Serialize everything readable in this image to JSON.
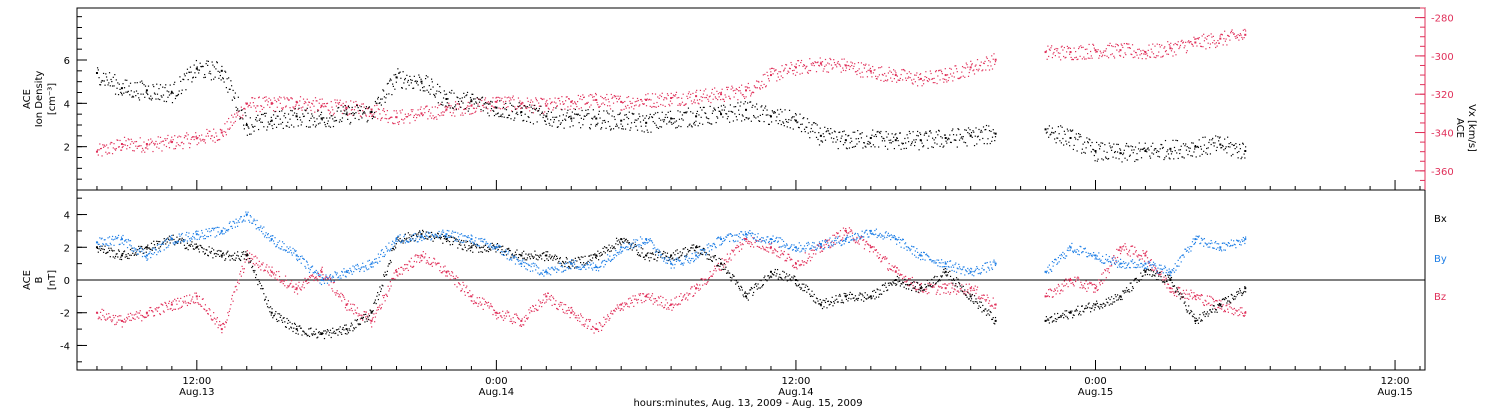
{
  "colors": {
    "black_series": "#000000",
    "pink_series": "#e0305a",
    "blue_series": "#1f7fe6",
    "axis": "#000000",
    "right_axis": "#e0305a"
  },
  "chart_data": [
    {
      "type": "scatter",
      "panel": "top",
      "ylabel_left": [
        "ACE",
        "Ion Density",
        "[cm⁻³]"
      ],
      "ylabel_right": [
        "ACE",
        "Vx [km/s]"
      ],
      "ylim_left": [
        0,
        8.4
      ],
      "ylim_right": [
        -370,
        -275
      ],
      "yticks_left": [
        "2",
        "4",
        "6"
      ],
      "yticks_right": [
        "-280",
        "-300",
        "-320",
        "-340",
        "-360"
      ],
      "x_unit": "hours since Aug.13 00:00 (2009)",
      "series": [
        {
          "color": "black",
          "x": [
            8,
            9,
            10,
            11,
            12,
            13,
            14,
            15,
            16,
            17,
            18,
            19,
            20,
            21,
            22,
            23,
            24,
            25,
            26,
            27,
            28,
            29,
            30,
            31,
            32,
            33,
            34,
            35,
            36,
            37,
            38,
            39,
            40,
            41,
            42,
            43,
            44,
            45,
            46,
            47,
            48,
            49,
            50,
            51,
            52,
            53,
            54
          ],
          "values": [
            5.4,
            4.7,
            4.6,
            4.5,
            5.6,
            5.5,
            3.0,
            3.2,
            3.4,
            3.3,
            3.5,
            3.6,
            5.2,
            5.0,
            4.2,
            4.1,
            3.8,
            3.6,
            3.4,
            3.3,
            3.3,
            3.2,
            3.1,
            3.3,
            3.4,
            3.5,
            3.7,
            3.4,
            3.2,
            2.5,
            2.3,
            2.4,
            2.3,
            2.3,
            2.4,
            2.5,
            2.6,
            null,
            2.8,
            2.4,
            1.8,
            1.7,
            1.8,
            1.9,
            2.0,
            2.1,
            1.8
          ]
        },
        {
          "color": "pink",
          "x": [
            8,
            9,
            10,
            11,
            12,
            13,
            14,
            15,
            16,
            17,
            18,
            19,
            20,
            21,
            22,
            23,
            24,
            25,
            26,
            27,
            28,
            29,
            30,
            31,
            32,
            33,
            34,
            35,
            36,
            37,
            38,
            39,
            40,
            41,
            42,
            43,
            44,
            45,
            46,
            47,
            48,
            49,
            50,
            51,
            52,
            53,
            54
          ],
          "values": [
            -350,
            -346,
            -346,
            -345,
            -343,
            -340,
            -325,
            -325,
            -324,
            -326,
            -327,
            -328,
            -332,
            -330,
            -328,
            -326,
            -324,
            -325,
            -326,
            -324,
            -323,
            -324,
            -323,
            -322,
            -321,
            -320,
            -318,
            -310,
            -306,
            -304,
            -305,
            -308,
            -310,
            -312,
            -310,
            -306,
            -302,
            null,
            -298,
            -298,
            -297,
            -297,
            -298,
            -296,
            -293,
            -291,
            -289
          ]
        }
      ]
    },
    {
      "type": "scatter",
      "panel": "bottom",
      "ylabel_left": [
        "ACE",
        "B",
        "[nT]"
      ],
      "ylim": [
        -5.5,
        5.5
      ],
      "yticks": [
        "4",
        "2",
        "0",
        "-2",
        "-4"
      ],
      "x_unit": "hours since Aug.13 00:00 (2009)",
      "legend": [
        "Bx",
        "By",
        "Bz"
      ],
      "series": [
        {
          "name": "Bx",
          "color": "black",
          "x": [
            8,
            9,
            10,
            11,
            12,
            13,
            14,
            15,
            16,
            17,
            18,
            19,
            20,
            21,
            22,
            23,
            24,
            25,
            26,
            27,
            28,
            29,
            30,
            31,
            32,
            33,
            34,
            35,
            36,
            37,
            38,
            39,
            40,
            41,
            42,
            43,
            44,
            45,
            46,
            47,
            48,
            49,
            50,
            51,
            52,
            53,
            54
          ],
          "values": [
            2.0,
            1.5,
            2.0,
            2.5,
            2.0,
            1.5,
            1.5,
            -2.0,
            -3.0,
            -3.3,
            -3.0,
            -2.0,
            2.5,
            2.8,
            2.5,
            2.0,
            2.0,
            1.5,
            1.5,
            1.0,
            1.5,
            2.5,
            1.5,
            1.5,
            2.0,
            1.0,
            -1.0,
            0.5,
            0.0,
            -1.5,
            -1.0,
            -1.0,
            0.0,
            -0.5,
            0.5,
            -1.0,
            -2.5,
            null,
            -2.5,
            -2.0,
            -1.5,
            -1.0,
            0.5,
            0.0,
            -2.5,
            -1.5,
            -0.5
          ]
        },
        {
          "name": "By",
          "color": "blue",
          "x": [
            8,
            9,
            10,
            11,
            12,
            13,
            14,
            15,
            16,
            17,
            18,
            19,
            20,
            21,
            22,
            23,
            24,
            25,
            26,
            27,
            28,
            29,
            30,
            31,
            32,
            33,
            34,
            35,
            36,
            37,
            38,
            39,
            40,
            41,
            42,
            43,
            44,
            45,
            46,
            47,
            48,
            49,
            50,
            51,
            52,
            53,
            54
          ],
          "values": [
            2.3,
            2.5,
            1.5,
            2.5,
            2.8,
            3.0,
            4.0,
            2.5,
            1.5,
            0.0,
            0.5,
            1.0,
            2.5,
            2.7,
            2.8,
            2.5,
            2.0,
            1.0,
            0.5,
            1.0,
            0.8,
            2.0,
            2.5,
            1.0,
            1.5,
            2.5,
            2.8,
            2.5,
            2.0,
            2.2,
            2.5,
            3.0,
            2.5,
            1.5,
            1.0,
            0.5,
            1.0,
            null,
            0.5,
            2.0,
            1.5,
            1.0,
            1.0,
            0.5,
            2.5,
            2.0,
            2.5
          ]
        },
        {
          "name": "Bz",
          "color": "pink",
          "x": [
            8,
            9,
            10,
            11,
            12,
            13,
            14,
            15,
            16,
            17,
            18,
            19,
            20,
            21,
            22,
            23,
            24,
            25,
            26,
            27,
            28,
            29,
            30,
            31,
            32,
            33,
            34,
            35,
            36,
            37,
            38,
            39,
            40,
            41,
            42,
            43,
            44,
            45,
            46,
            47,
            48,
            49,
            50,
            51,
            52,
            53,
            54
          ],
          "values": [
            -2.0,
            -2.5,
            -2.0,
            -1.5,
            -1.0,
            -3.0,
            1.5,
            0.5,
            -0.5,
            0.5,
            -1.5,
            -2.5,
            0.5,
            1.5,
            0.5,
            -1.0,
            -2.0,
            -2.5,
            -1.0,
            -2.0,
            -3.0,
            -1.5,
            -1.0,
            -1.5,
            -0.5,
            1.0,
            2.5,
            2.0,
            1.0,
            2.0,
            3.0,
            2.0,
            0.5,
            -0.5,
            -0.5,
            -0.5,
            -1.5,
            null,
            -1.0,
            0.0,
            -0.5,
            2.0,
            1.5,
            -0.5,
            -1.0,
            -1.5,
            -2.0
          ]
        }
      ]
    }
  ],
  "x_axis": {
    "ticks": [
      {
        "time": "12:00",
        "date": "Aug.13",
        "hours": 12
      },
      {
        "time": "0:00",
        "date": "Aug.14",
        "hours": 24
      },
      {
        "time": "12:00",
        "date": "Aug.14",
        "hours": 36
      },
      {
        "time": "0:00",
        "date": "Aug.15",
        "hours": 48
      },
      {
        "time": "12:00",
        "date": "Aug.15",
        "hours": 60
      }
    ],
    "range_hours": [
      7.2,
      61.2
    ],
    "caption": "hours:minutes, Aug. 13, 2009 - Aug. 15, 2009"
  },
  "labels": {
    "top_left": [
      "ACE",
      "Ion Density",
      "[cm⁻³]"
    ],
    "top_right": [
      "ACE",
      "Vx [km/s]"
    ],
    "bottom_left": [
      "ACE",
      "B",
      "[nT]"
    ],
    "legend_bx": "Bx",
    "legend_by": "By",
    "legend_bz": "Bz"
  }
}
